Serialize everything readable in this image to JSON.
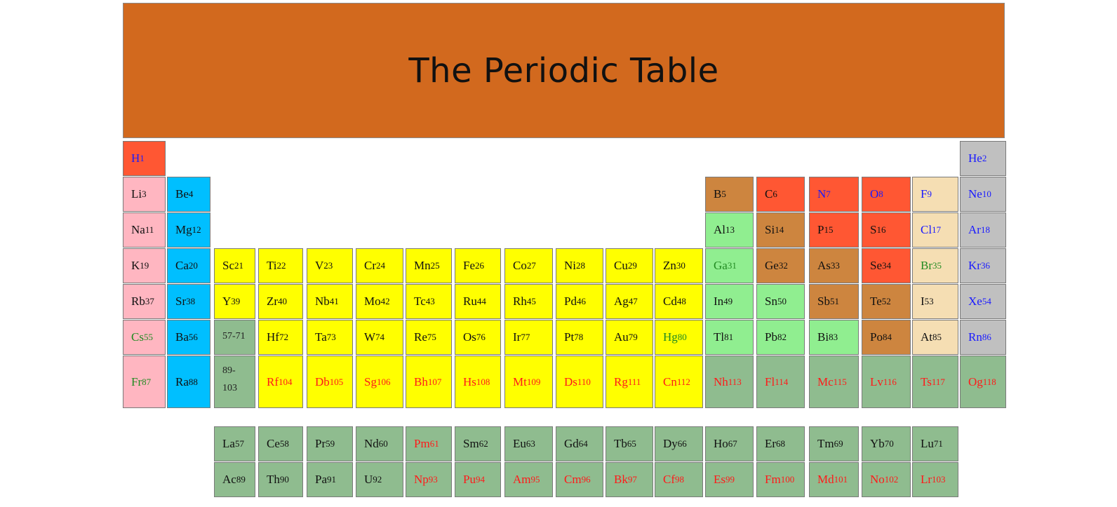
{
  "title": "The Periodic Table",
  "colors": {
    "banner": "#d2691e",
    "hydrogen": "#ff5733",
    "alkali_metal": "#ffb6c1",
    "alkaline_earth": "#00bfff",
    "transition_metal": "#ffff00",
    "post_transition": "#90ee90",
    "metalloid": "#cd853f",
    "nonmetal": "#ff5733",
    "halogen": "#f5deb3",
    "noble_gas": "#c0c0c0",
    "lanthanide_actinide": "#8fbc8f",
    "text_solid": "#111111",
    "text_gas": "#1a1aff",
    "text_liquid": "#228b22",
    "text_synthetic": "#ff1a1a"
  },
  "elements": [
    {
      "symbol": "H",
      "number": "1",
      "row": 1,
      "col": 1,
      "cat": "hydrogen",
      "state": "gas"
    },
    {
      "symbol": "He",
      "number": "2",
      "row": 1,
      "col": 18,
      "cat": "noble_gas",
      "state": "gas"
    },
    {
      "symbol": "Li",
      "number": "3",
      "row": 2,
      "col": 1,
      "cat": "alkali_metal",
      "state": "solid"
    },
    {
      "symbol": "Be",
      "number": "4",
      "row": 2,
      "col": 2,
      "cat": "alkaline_earth",
      "state": "solid"
    },
    {
      "symbol": "B",
      "number": "5",
      "row": 2,
      "col": 13,
      "cat": "metalloid",
      "state": "solid"
    },
    {
      "symbol": "C",
      "number": "6",
      "row": 2,
      "col": 14,
      "cat": "nonmetal",
      "state": "solid"
    },
    {
      "symbol": "N",
      "number": "7",
      "row": 2,
      "col": 15,
      "cat": "nonmetal",
      "state": "gas"
    },
    {
      "symbol": "O",
      "number": "8",
      "row": 2,
      "col": 16,
      "cat": "nonmetal",
      "state": "gas"
    },
    {
      "symbol": "F",
      "number": "9",
      "row": 2,
      "col": 17,
      "cat": "halogen",
      "state": "gas"
    },
    {
      "symbol": "Ne",
      "number": "10",
      "row": 2,
      "col": 18,
      "cat": "noble_gas",
      "state": "gas"
    },
    {
      "symbol": "Na",
      "number": "11",
      "row": 3,
      "col": 1,
      "cat": "alkali_metal",
      "state": "solid"
    },
    {
      "symbol": "Mg",
      "number": "12",
      "row": 3,
      "col": 2,
      "cat": "alkaline_earth",
      "state": "solid"
    },
    {
      "symbol": "Al",
      "number": "13",
      "row": 3,
      "col": 13,
      "cat": "post_transition",
      "state": "solid"
    },
    {
      "symbol": "Si",
      "number": "14",
      "row": 3,
      "col": 14,
      "cat": "metalloid",
      "state": "solid"
    },
    {
      "symbol": "P",
      "number": "15",
      "row": 3,
      "col": 15,
      "cat": "nonmetal",
      "state": "solid"
    },
    {
      "symbol": "S",
      "number": "16",
      "row": 3,
      "col": 16,
      "cat": "nonmetal",
      "state": "solid"
    },
    {
      "symbol": "Cl",
      "number": "17",
      "row": 3,
      "col": 17,
      "cat": "halogen",
      "state": "gas"
    },
    {
      "symbol": "Ar",
      "number": "18",
      "row": 3,
      "col": 18,
      "cat": "noble_gas",
      "state": "gas"
    },
    {
      "symbol": "K",
      "number": "19",
      "row": 4,
      "col": 1,
      "cat": "alkali_metal",
      "state": "solid"
    },
    {
      "symbol": "Ca",
      "number": "20",
      "row": 4,
      "col": 2,
      "cat": "alkaline_earth",
      "state": "solid"
    },
    {
      "symbol": "Sc",
      "number": "21",
      "row": 4,
      "col": 3,
      "cat": "transition_metal",
      "state": "solid"
    },
    {
      "symbol": "Ti",
      "number": "22",
      "row": 4,
      "col": 4,
      "cat": "transition_metal",
      "state": "solid"
    },
    {
      "symbol": "V",
      "number": "23",
      "row": 4,
      "col": 5,
      "cat": "transition_metal",
      "state": "solid"
    },
    {
      "symbol": "Cr",
      "number": "24",
      "row": 4,
      "col": 6,
      "cat": "transition_metal",
      "state": "solid"
    },
    {
      "symbol": "Mn",
      "number": "25",
      "row": 4,
      "col": 7,
      "cat": "transition_metal",
      "state": "solid"
    },
    {
      "symbol": "Fe",
      "number": "26",
      "row": 4,
      "col": 8,
      "cat": "transition_metal",
      "state": "solid"
    },
    {
      "symbol": "Co",
      "number": "27",
      "row": 4,
      "col": 9,
      "cat": "transition_metal",
      "state": "solid"
    },
    {
      "symbol": "Ni",
      "number": "28",
      "row": 4,
      "col": 10,
      "cat": "transition_metal",
      "state": "solid"
    },
    {
      "symbol": "Cu",
      "number": "29",
      "row": 4,
      "col": 11,
      "cat": "transition_metal",
      "state": "solid"
    },
    {
      "symbol": "Zn",
      "number": "30",
      "row": 4,
      "col": 12,
      "cat": "transition_metal",
      "state": "solid"
    },
    {
      "symbol": "Ga",
      "number": "31",
      "row": 4,
      "col": 13,
      "cat": "post_transition",
      "state": "liquid"
    },
    {
      "symbol": "Ge",
      "number": "32",
      "row": 4,
      "col": 14,
      "cat": "metalloid",
      "state": "solid"
    },
    {
      "symbol": "As",
      "number": "33",
      "row": 4,
      "col": 15,
      "cat": "metalloid",
      "state": "solid"
    },
    {
      "symbol": "Se",
      "number": "34",
      "row": 4,
      "col": 16,
      "cat": "nonmetal",
      "state": "solid"
    },
    {
      "symbol": "Br",
      "number": "35",
      "row": 4,
      "col": 17,
      "cat": "halogen",
      "state": "liquid"
    },
    {
      "symbol": "Kr",
      "number": "36",
      "row": 4,
      "col": 18,
      "cat": "noble_gas",
      "state": "gas"
    },
    {
      "symbol": "Rb",
      "number": "37",
      "row": 5,
      "col": 1,
      "cat": "alkali_metal",
      "state": "solid"
    },
    {
      "symbol": "Sr",
      "number": "38",
      "row": 5,
      "col": 2,
      "cat": "alkaline_earth",
      "state": "solid"
    },
    {
      "symbol": "Y",
      "number": "39",
      "row": 5,
      "col": 3,
      "cat": "transition_metal",
      "state": "solid"
    },
    {
      "symbol": "Zr",
      "number": "40",
      "row": 5,
      "col": 4,
      "cat": "transition_metal",
      "state": "solid"
    },
    {
      "symbol": "Nb",
      "number": "41",
      "row": 5,
      "col": 5,
      "cat": "transition_metal",
      "state": "solid"
    },
    {
      "symbol": "Mo",
      "number": "42",
      "row": 5,
      "col": 6,
      "cat": "transition_metal",
      "state": "solid"
    },
    {
      "symbol": "Tc",
      "number": "43",
      "row": 5,
      "col": 7,
      "cat": "transition_metal",
      "state": "solid"
    },
    {
      "symbol": "Ru",
      "number": "44",
      "row": 5,
      "col": 8,
      "cat": "transition_metal",
      "state": "solid"
    },
    {
      "symbol": "Rh",
      "number": "45",
      "row": 5,
      "col": 9,
      "cat": "transition_metal",
      "state": "solid"
    },
    {
      "symbol": "Pd",
      "number": "46",
      "row": 5,
      "col": 10,
      "cat": "transition_metal",
      "state": "solid"
    },
    {
      "symbol": "Ag",
      "number": "47",
      "row": 5,
      "col": 11,
      "cat": "transition_metal",
      "state": "solid"
    },
    {
      "symbol": "Cd",
      "number": "48",
      "row": 5,
      "col": 12,
      "cat": "transition_metal",
      "state": "solid"
    },
    {
      "symbol": "In",
      "number": "49",
      "row": 5,
      "col": 13,
      "cat": "post_transition",
      "state": "solid"
    },
    {
      "symbol": "Sn",
      "number": "50",
      "row": 5,
      "col": 14,
      "cat": "post_transition",
      "state": "solid"
    },
    {
      "symbol": "Sb",
      "number": "51",
      "row": 5,
      "col": 15,
      "cat": "metalloid",
      "state": "solid"
    },
    {
      "symbol": "Te",
      "number": "52",
      "row": 5,
      "col": 16,
      "cat": "metalloid",
      "state": "solid"
    },
    {
      "symbol": "I",
      "number": "53",
      "row": 5,
      "col": 17,
      "cat": "halogen",
      "state": "solid"
    },
    {
      "symbol": "Xe",
      "number": "54",
      "row": 5,
      "col": 18,
      "cat": "noble_gas",
      "state": "gas"
    },
    {
      "symbol": "Cs",
      "number": "55",
      "row": 6,
      "col": 1,
      "cat": "alkali_metal",
      "state": "liquid"
    },
    {
      "symbol": "Ba",
      "number": "56",
      "row": 6,
      "col": 2,
      "cat": "alkaline_earth",
      "state": "solid"
    },
    {
      "range": "57-71",
      "row": 6,
      "col": 3,
      "cat": "lanthanide_actinide"
    },
    {
      "symbol": "Hf",
      "number": "72",
      "row": 6,
      "col": 4,
      "cat": "transition_metal",
      "state": "solid"
    },
    {
      "symbol": "Ta",
      "number": "73",
      "row": 6,
      "col": 5,
      "cat": "transition_metal",
      "state": "solid"
    },
    {
      "symbol": "W",
      "number": "74",
      "row": 6,
      "col": 6,
      "cat": "transition_metal",
      "state": "solid"
    },
    {
      "symbol": "Re",
      "number": "75",
      "row": 6,
      "col": 7,
      "cat": "transition_metal",
      "state": "solid"
    },
    {
      "symbol": "Os",
      "number": "76",
      "row": 6,
      "col": 8,
      "cat": "transition_metal",
      "state": "solid"
    },
    {
      "symbol": "Ir",
      "number": "77",
      "row": 6,
      "col": 9,
      "cat": "transition_metal",
      "state": "solid"
    },
    {
      "symbol": "Pt",
      "number": "78",
      "row": 6,
      "col": 10,
      "cat": "transition_metal",
      "state": "solid"
    },
    {
      "symbol": "Au",
      "number": "79",
      "row": 6,
      "col": 11,
      "cat": "transition_metal",
      "state": "solid"
    },
    {
      "symbol": "Hg",
      "number": "80",
      "row": 6,
      "col": 12,
      "cat": "transition_metal",
      "state": "liquid"
    },
    {
      "symbol": "Tl",
      "number": "81",
      "row": 6,
      "col": 13,
      "cat": "post_transition",
      "state": "solid"
    },
    {
      "symbol": "Pb",
      "number": "82",
      "row": 6,
      "col": 14,
      "cat": "post_transition",
      "state": "solid"
    },
    {
      "symbol": "Bi",
      "number": "83",
      "row": 6,
      "col": 15,
      "cat": "post_transition",
      "state": "solid"
    },
    {
      "symbol": "Po",
      "number": "84",
      "row": 6,
      "col": 16,
      "cat": "metalloid",
      "state": "solid"
    },
    {
      "symbol": "At",
      "number": "85",
      "row": 6,
      "col": 17,
      "cat": "halogen",
      "state": "solid"
    },
    {
      "symbol": "Rn",
      "number": "86",
      "row": 6,
      "col": 18,
      "cat": "noble_gas",
      "state": "gas"
    },
    {
      "symbol": "Fr",
      "number": "87",
      "row": 7,
      "col": 1,
      "cat": "alkali_metal",
      "state": "liquid"
    },
    {
      "symbol": "Ra",
      "number": "88",
      "row": 7,
      "col": 2,
      "cat": "alkaline_earth",
      "state": "solid"
    },
    {
      "range": "89-103",
      "row": 7,
      "col": 3,
      "cat": "lanthanide_actinide"
    },
    {
      "symbol": "Rf",
      "number": "104",
      "row": 7,
      "col": 4,
      "cat": "transition_metal",
      "state": "synthetic"
    },
    {
      "symbol": "Db",
      "number": "105",
      "row": 7,
      "col": 5,
      "cat": "transition_metal",
      "state": "synthetic"
    },
    {
      "symbol": "Sg",
      "number": "106",
      "row": 7,
      "col": 6,
      "cat": "transition_metal",
      "state": "synthetic"
    },
    {
      "symbol": "Bh",
      "number": "107",
      "row": 7,
      "col": 7,
      "cat": "transition_metal",
      "state": "synthetic"
    },
    {
      "symbol": "Hs",
      "number": "108",
      "row": 7,
      "col": 8,
      "cat": "transition_metal",
      "state": "synthetic"
    },
    {
      "symbol": "Mt",
      "number": "109",
      "row": 7,
      "col": 9,
      "cat": "transition_metal",
      "state": "synthetic"
    },
    {
      "symbol": "Ds",
      "number": "110",
      "row": 7,
      "col": 10,
      "cat": "transition_metal",
      "state": "synthetic"
    },
    {
      "symbol": "Rg",
      "number": "111",
      "row": 7,
      "col": 11,
      "cat": "transition_metal",
      "state": "synthetic"
    },
    {
      "symbol": "Cn",
      "number": "112",
      "row": 7,
      "col": 12,
      "cat": "transition_metal",
      "state": "synthetic"
    },
    {
      "symbol": "Nh",
      "number": "113",
      "row": 7,
      "col": 13,
      "cat": "lanthanide_actinide",
      "state": "synthetic"
    },
    {
      "symbol": "Fl",
      "number": "114",
      "row": 7,
      "col": 14,
      "cat": "lanthanide_actinide",
      "state": "synthetic"
    },
    {
      "symbol": "Mc",
      "number": "115",
      "row": 7,
      "col": 15,
      "cat": "lanthanide_actinide",
      "state": "synthetic"
    },
    {
      "symbol": "Lv",
      "number": "116",
      "row": 7,
      "col": 16,
      "cat": "lanthanide_actinide",
      "state": "synthetic"
    },
    {
      "symbol": "Ts",
      "number": "117",
      "row": 7,
      "col": 17,
      "cat": "lanthanide_actinide",
      "state": "synthetic"
    },
    {
      "symbol": "Og",
      "number": "118",
      "row": 7,
      "col": 18,
      "cat": "lanthanide_actinide",
      "state": "synthetic"
    },
    {
      "symbol": "La",
      "number": "57",
      "row": 8,
      "col": 3,
      "cat": "lanthanide_actinide",
      "state": "solid"
    },
    {
      "symbol": "Ce",
      "number": "58",
      "row": 8,
      "col": 4,
      "cat": "lanthanide_actinide",
      "state": "solid"
    },
    {
      "symbol": "Pr",
      "number": "59",
      "row": 8,
      "col": 5,
      "cat": "lanthanide_actinide",
      "state": "solid"
    },
    {
      "symbol": "Nd",
      "number": "60",
      "row": 8,
      "col": 6,
      "cat": "lanthanide_actinide",
      "state": "solid"
    },
    {
      "symbol": "Pm",
      "number": "61",
      "row": 8,
      "col": 7,
      "cat": "lanthanide_actinide",
      "state": "synthetic"
    },
    {
      "symbol": "Sm",
      "number": "62",
      "row": 8,
      "col": 8,
      "cat": "lanthanide_actinide",
      "state": "solid"
    },
    {
      "symbol": "Eu",
      "number": "63",
      "row": 8,
      "col": 9,
      "cat": "lanthanide_actinide",
      "state": "solid"
    },
    {
      "symbol": "Gd",
      "number": "64",
      "row": 8,
      "col": 10,
      "cat": "lanthanide_actinide",
      "state": "solid"
    },
    {
      "symbol": "Tb",
      "number": "65",
      "row": 8,
      "col": 11,
      "cat": "lanthanide_actinide",
      "state": "solid"
    },
    {
      "symbol": "Dy",
      "number": "66",
      "row": 8,
      "col": 12,
      "cat": "lanthanide_actinide",
      "state": "solid"
    },
    {
      "symbol": "Ho",
      "number": "67",
      "row": 8,
      "col": 13,
      "cat": "lanthanide_actinide",
      "state": "solid"
    },
    {
      "symbol": "Er",
      "number": "68",
      "row": 8,
      "col": 14,
      "cat": "lanthanide_actinide",
      "state": "solid"
    },
    {
      "symbol": "Tm",
      "number": "69",
      "row": 8,
      "col": 15,
      "cat": "lanthanide_actinide",
      "state": "solid"
    },
    {
      "symbol": "Yb",
      "number": "70",
      "row": 8,
      "col": 16,
      "cat": "lanthanide_actinide",
      "state": "solid"
    },
    {
      "symbol": "Lu",
      "number": "71",
      "row": 8,
      "col": 17,
      "cat": "lanthanide_actinide",
      "state": "solid"
    },
    {
      "symbol": "Ac",
      "number": "89",
      "row": 9,
      "col": 3,
      "cat": "lanthanide_actinide",
      "state": "solid"
    },
    {
      "symbol": "Th",
      "number": "90",
      "row": 9,
      "col": 4,
      "cat": "lanthanide_actinide",
      "state": "solid"
    },
    {
      "symbol": "Pa",
      "number": "91",
      "row": 9,
      "col": 5,
      "cat": "lanthanide_actinide",
      "state": "solid"
    },
    {
      "symbol": "U",
      "number": "92",
      "row": 9,
      "col": 6,
      "cat": "lanthanide_actinide",
      "state": "solid"
    },
    {
      "symbol": "Np",
      "number": "93",
      "row": 9,
      "col": 7,
      "cat": "lanthanide_actinide",
      "state": "synthetic"
    },
    {
      "symbol": "Pu",
      "number": "94",
      "row": 9,
      "col": 8,
      "cat": "lanthanide_actinide",
      "state": "synthetic"
    },
    {
      "symbol": "Am",
      "number": "95",
      "row": 9,
      "col": 9,
      "cat": "lanthanide_actinide",
      "state": "synthetic"
    },
    {
      "symbol": "Cm",
      "number": "96",
      "row": 9,
      "col": 10,
      "cat": "lanthanide_actinide",
      "state": "synthetic"
    },
    {
      "symbol": "Bk",
      "number": "97",
      "row": 9,
      "col": 11,
      "cat": "lanthanide_actinide",
      "state": "synthetic"
    },
    {
      "symbol": "Cf",
      "number": "98",
      "row": 9,
      "col": 12,
      "cat": "lanthanide_actinide",
      "state": "synthetic"
    },
    {
      "symbol": "Es",
      "number": "99",
      "row": 9,
      "col": 13,
      "cat": "lanthanide_actinide",
      "state": "synthetic"
    },
    {
      "symbol": "Fm",
      "number": "100",
      "row": 9,
      "col": 14,
      "cat": "lanthanide_actinide",
      "state": "synthetic"
    },
    {
      "symbol": "Md",
      "number": "101",
      "row": 9,
      "col": 15,
      "cat": "lanthanide_actinide",
      "state": "synthetic"
    },
    {
      "symbol": "No",
      "number": "102",
      "row": 9,
      "col": 16,
      "cat": "lanthanide_actinide",
      "state": "synthetic"
    },
    {
      "symbol": "Lr",
      "number": "103",
      "row": 9,
      "col": 17,
      "cat": "lanthanide_actinide",
      "state": "synthetic"
    }
  ]
}
